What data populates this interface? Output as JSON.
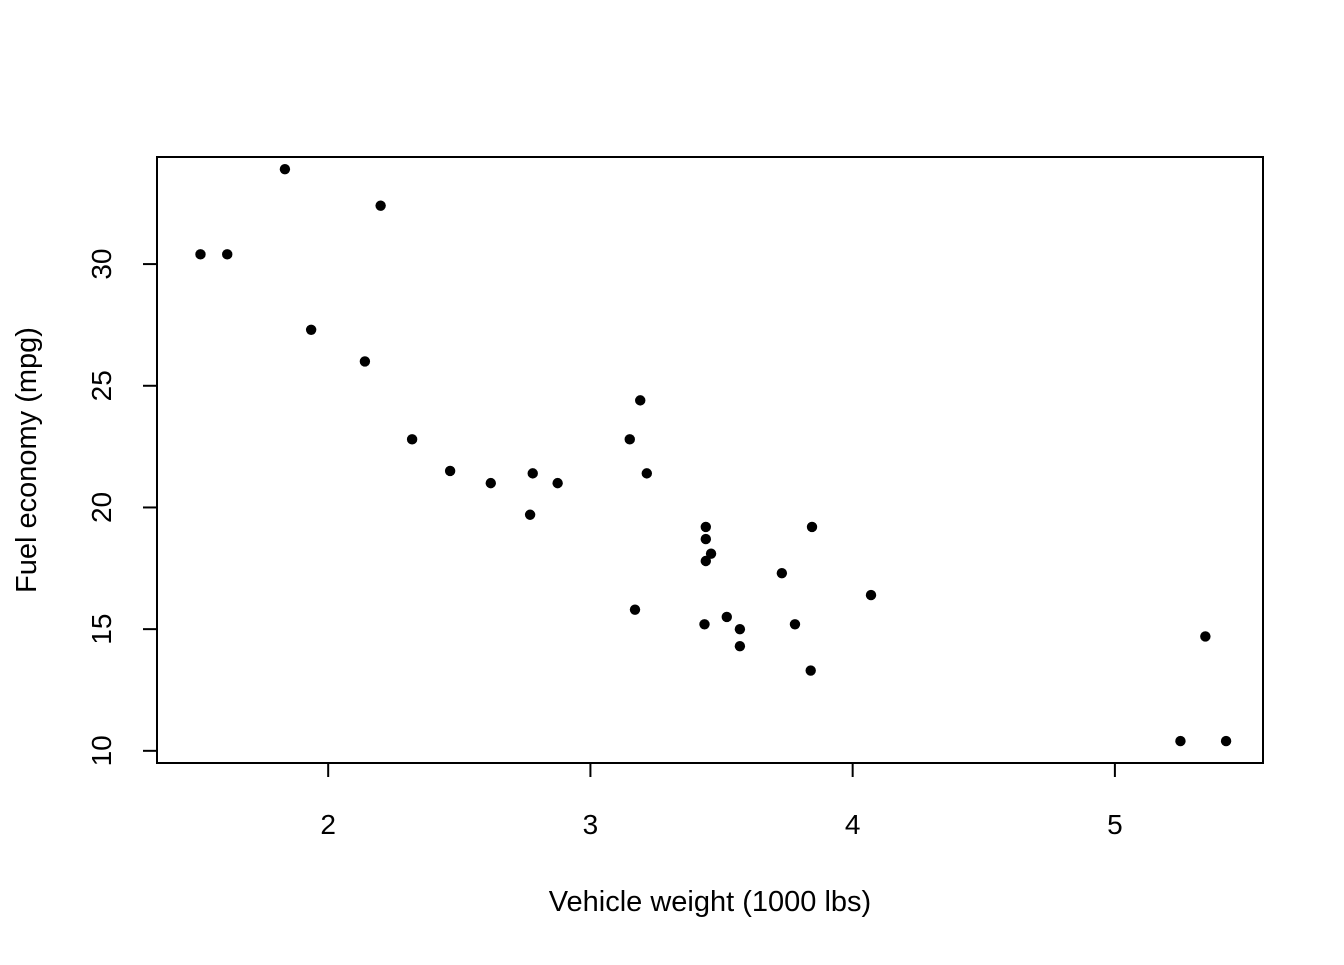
{
  "chart_data": {
    "type": "scatter",
    "title": "",
    "xlabel": "Vehicle weight (1000 lbs)",
    "ylabel": "Fuel economy (mpg)",
    "xlim": [
      1.3472,
      5.5648
    ],
    "ylim": [
      9.5,
      34.4
    ],
    "xticks": [
      2,
      3,
      4,
      5
    ],
    "yticks": [
      10,
      15,
      20,
      25,
      30
    ],
    "xtick_labels": [
      "2",
      "3",
      "4",
      "5"
    ],
    "ytick_labels": [
      "10",
      "15",
      "20",
      "25",
      "30"
    ],
    "grid": false,
    "legend": "none",
    "point_color": "#000000",
    "points": [
      {
        "x": 2.62,
        "y": 21.0
      },
      {
        "x": 2.875,
        "y": 21.0
      },
      {
        "x": 2.32,
        "y": 22.8
      },
      {
        "x": 3.215,
        "y": 21.4
      },
      {
        "x": 3.44,
        "y": 18.7
      },
      {
        "x": 3.46,
        "y": 18.1
      },
      {
        "x": 3.57,
        "y": 14.3
      },
      {
        "x": 3.19,
        "y": 24.4
      },
      {
        "x": 3.15,
        "y": 22.8
      },
      {
        "x": 3.44,
        "y": 19.2
      },
      {
        "x": 3.44,
        "y": 17.8
      },
      {
        "x": 4.07,
        "y": 16.4
      },
      {
        "x": 3.73,
        "y": 17.3
      },
      {
        "x": 3.78,
        "y": 15.2
      },
      {
        "x": 5.25,
        "y": 10.4
      },
      {
        "x": 5.424,
        "y": 10.4
      },
      {
        "x": 5.345,
        "y": 14.7
      },
      {
        "x": 2.2,
        "y": 32.4
      },
      {
        "x": 1.615,
        "y": 30.4
      },
      {
        "x": 1.835,
        "y": 33.9
      },
      {
        "x": 2.465,
        "y": 21.5
      },
      {
        "x": 3.52,
        "y": 15.5
      },
      {
        "x": 3.435,
        "y": 15.2
      },
      {
        "x": 3.84,
        "y": 13.3
      },
      {
        "x": 3.845,
        "y": 19.2
      },
      {
        "x": 1.935,
        "y": 27.3
      },
      {
        "x": 2.14,
        "y": 26.0
      },
      {
        "x": 1.513,
        "y": 30.4
      },
      {
        "x": 3.17,
        "y": 15.8
      },
      {
        "x": 2.77,
        "y": 19.7
      },
      {
        "x": 3.57,
        "y": 15.0
      },
      {
        "x": 2.78,
        "y": 21.4
      }
    ]
  }
}
